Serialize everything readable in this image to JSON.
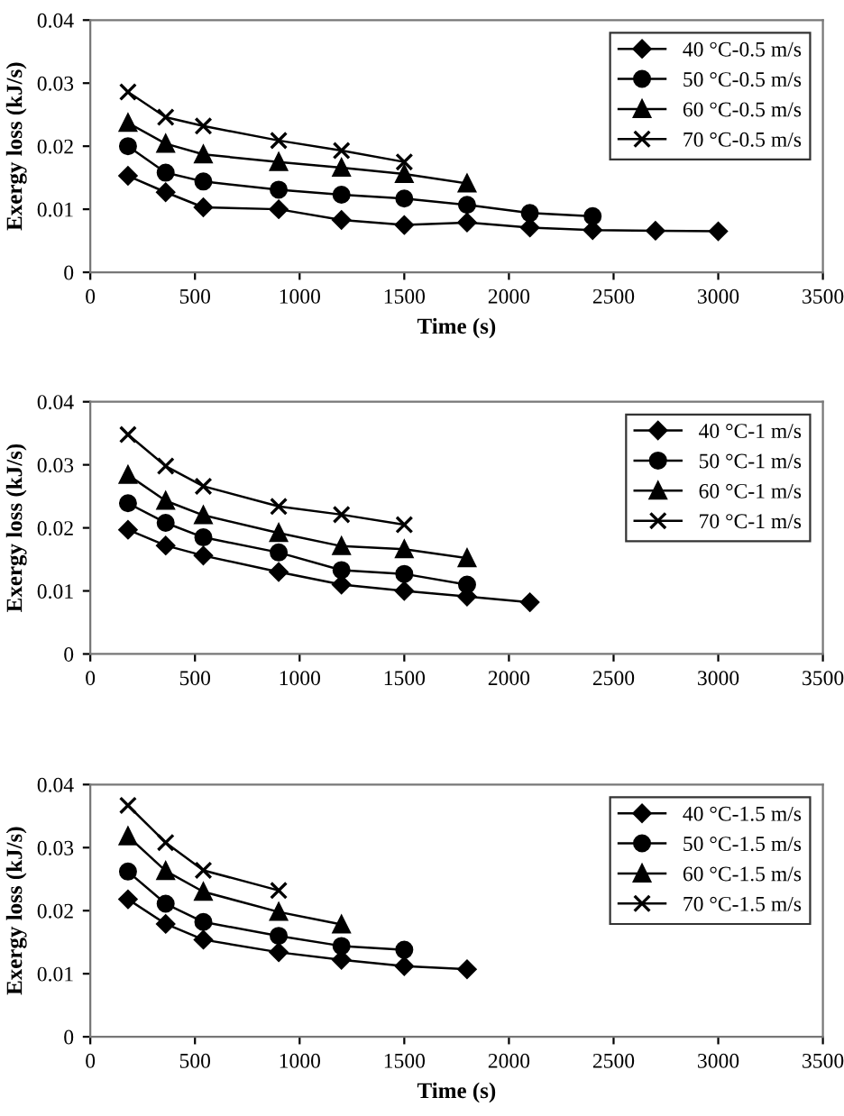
{
  "chart_data": [
    {
      "type": "line",
      "xlabel": "Time (s)",
      "ylabel": "Exergy loss (kJ/s)",
      "xlim": [
        0,
        3500
      ],
      "xticks": [
        0,
        500,
        1000,
        1500,
        2000,
        2500,
        3000,
        3500
      ],
      "ylim": [
        0,
        0.04
      ],
      "yticks": [
        0,
        0.01,
        0.02,
        0.03,
        0.04
      ],
      "grid": false,
      "legend": "top right",
      "series": [
        {
          "name": "40 °C-0.5 m/s",
          "color": "#000000",
          "marker": "diamond",
          "x": [
            180,
            360,
            540,
            900,
            1200,
            1500,
            1800,
            2100,
            2400,
            2700,
            3000
          ],
          "values": [
            0.0153,
            0.0127,
            0.0103,
            0.01,
            0.0083,
            0.0075,
            0.0079,
            0.0071,
            0.0067,
            0.0066,
            0.0065
          ]
        },
        {
          "name": "50 °C-0.5 m/s",
          "color": "#000000",
          "marker": "circle",
          "x": [
            180,
            360,
            540,
            900,
            1200,
            1500,
            1800,
            2100,
            2400
          ],
          "values": [
            0.02,
            0.0158,
            0.0144,
            0.0131,
            0.0123,
            0.0117,
            0.0107,
            0.0094,
            0.0089
          ]
        },
        {
          "name": "60 °C-0.5 m/s",
          "color": "#000000",
          "marker": "triangle",
          "x": [
            180,
            360,
            540,
            900,
            1200,
            1500,
            1800
          ],
          "values": [
            0.0237,
            0.0204,
            0.0187,
            0.0175,
            0.0166,
            0.0156,
            0.0141
          ]
        },
        {
          "name": "70 °C-0.5 m/s",
          "color": "#000000",
          "marker": "cross",
          "x": [
            180,
            360,
            540,
            900,
            1200,
            1500
          ],
          "values": [
            0.0286,
            0.0246,
            0.0232,
            0.0209,
            0.0193,
            0.0175
          ]
        }
      ]
    },
    {
      "type": "line",
      "ylabel": "Exergy loss (kJ/s)",
      "xlim": [
        0,
        3500
      ],
      "xticks": [
        0,
        500,
        1000,
        1500,
        2000,
        2500,
        3000,
        3500
      ],
      "ylim": [
        0,
        0.04
      ],
      "yticks": [
        0,
        0.01,
        0.02,
        0.03,
        0.04
      ],
      "grid": false,
      "legend": "top right",
      "series": [
        {
          "name": "40 °C-1 m/s",
          "color": "#000000",
          "marker": "diamond",
          "x": [
            180,
            360,
            540,
            900,
            1200,
            1500,
            1800,
            2100
          ],
          "values": [
            0.0197,
            0.0172,
            0.0156,
            0.013,
            0.011,
            0.01,
            0.0091,
            0.0082
          ]
        },
        {
          "name": "50 °C-1 m/s",
          "color": "#000000",
          "marker": "circle",
          "x": [
            180,
            360,
            540,
            900,
            1200,
            1500,
            1800
          ],
          "values": [
            0.0239,
            0.0208,
            0.0185,
            0.0161,
            0.0133,
            0.0127,
            0.011
          ]
        },
        {
          "name": "60 °C-1 m/s",
          "color": "#000000",
          "marker": "triangle",
          "x": [
            180,
            360,
            540,
            900,
            1200,
            1500,
            1800
          ],
          "values": [
            0.0284,
            0.0243,
            0.022,
            0.0192,
            0.0171,
            0.0166,
            0.0152
          ]
        },
        {
          "name": "70 °C-1 m/s",
          "color": "#000000",
          "marker": "cross",
          "x": [
            180,
            360,
            540,
            900,
            1200,
            1500
          ],
          "values": [
            0.0348,
            0.0298,
            0.0266,
            0.0234,
            0.0221,
            0.0205
          ]
        }
      ]
    },
    {
      "type": "line",
      "xlabel": "Time (s)",
      "ylabel": "Exergy loss (kJ/s)",
      "xlim": [
        0,
        3500
      ],
      "xticks": [
        0,
        500,
        1000,
        1500,
        2000,
        2500,
        3000,
        3500
      ],
      "ylim": [
        0,
        0.04
      ],
      "yticks": [
        0,
        0.01,
        0.02,
        0.03,
        0.04
      ],
      "grid": false,
      "legend": "top right",
      "series": [
        {
          "name": "40 °C-1.5 m/s",
          "color": "#000000",
          "marker": "diamond",
          "x": [
            180,
            360,
            540,
            900,
            1200,
            1500,
            1800
          ],
          "values": [
            0.0218,
            0.0179,
            0.0154,
            0.0134,
            0.0122,
            0.0112,
            0.0107
          ]
        },
        {
          "name": "50 °C-1.5 m/s",
          "color": "#000000",
          "marker": "circle",
          "x": [
            180,
            360,
            540,
            900,
            1200,
            1500
          ],
          "values": [
            0.0262,
            0.0211,
            0.0182,
            0.016,
            0.0144,
            0.0138
          ]
        },
        {
          "name": "60 °C-1.5 m/s",
          "color": "#000000",
          "marker": "triangle",
          "x": [
            180,
            360,
            540,
            900,
            1200
          ],
          "values": [
            0.0318,
            0.0263,
            0.023,
            0.0198,
            0.0178
          ]
        },
        {
          "name": "70 °C-1.5 m/s",
          "color": "#000000",
          "marker": "cross",
          "x": [
            180,
            360,
            540,
            900
          ],
          "values": [
            0.0367,
            0.0308,
            0.0264,
            0.0232
          ]
        }
      ]
    }
  ]
}
